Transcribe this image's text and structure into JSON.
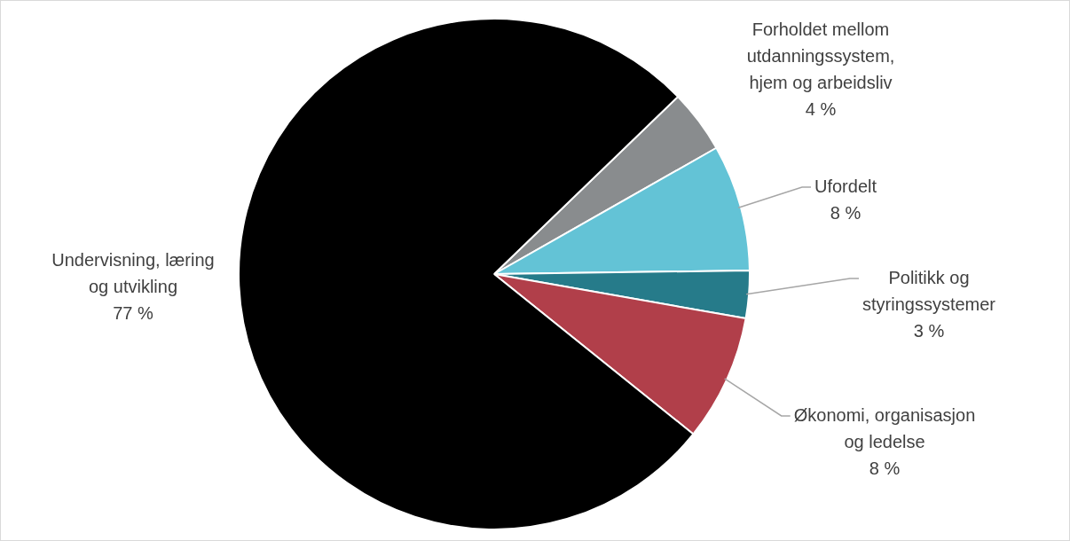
{
  "chart_data": {
    "type": "pie",
    "categories": [
      "Forholdet mellom utdanningssystem, hjem og arbeidsliv",
      "Ufordelt",
      "Politikk og styringssystemer",
      "Økonomi, organisasjon og ledelse",
      "Undervisning, læring og utvikling"
    ],
    "values": [
      4,
      8,
      3,
      8,
      77
    ],
    "value_labels": [
      "4 %",
      "8 %",
      "3 %",
      "8 %",
      "77 %"
    ],
    "colors": [
      "#898c8e",
      "#63c3d6",
      "#267b8a",
      "#b13f4a",
      "#000000"
    ],
    "legend": false
  }
}
